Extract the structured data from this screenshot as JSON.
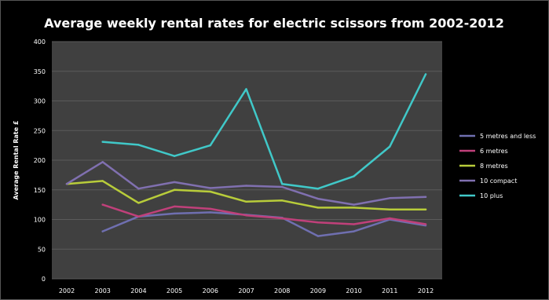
{
  "chart_data": {
    "type": "line",
    "title": "Average weekly rental rates for electric scissors from 2002-2012",
    "ylabel": "Average Rental Rate £",
    "xlabel": "",
    "ylim": [
      0,
      400
    ],
    "yticks": [
      0,
      50,
      100,
      150,
      200,
      250,
      300,
      350,
      400
    ],
    "categories": [
      "2002",
      "2003",
      "2004",
      "2005",
      "2006",
      "2007",
      "2008",
      "2009",
      "2010",
      "2011",
      "2012"
    ],
    "grid": true,
    "legend_position": "right",
    "background": "#000000",
    "plot_background": "#404040",
    "series": [
      {
        "name": "5 metres and less",
        "color": "#6f6fb0",
        "values": [
          null,
          80,
          105,
          110,
          112,
          108,
          103,
          72,
          80,
          100,
          90
        ]
      },
      {
        "name": "6 metres",
        "color": "#c0407a",
        "values": [
          null,
          125,
          105,
          122,
          118,
          107,
          102,
          95,
          92,
          102,
          92
        ]
      },
      {
        "name": "8 metres",
        "color": "#b8cc3a",
        "values": [
          160,
          165,
          128,
          150,
          147,
          130,
          132,
          120,
          120,
          117,
          117
        ]
      },
      {
        "name": "10 compact",
        "color": "#8070b0",
        "values": [
          160,
          197,
          152,
          163,
          153,
          157,
          155,
          135,
          125,
          136,
          138
        ]
      },
      {
        "name": "10 plus",
        "color": "#40c8c8",
        "values": [
          null,
          231,
          226,
          207,
          225,
          320,
          160,
          152,
          173,
          223,
          345
        ]
      }
    ]
  }
}
